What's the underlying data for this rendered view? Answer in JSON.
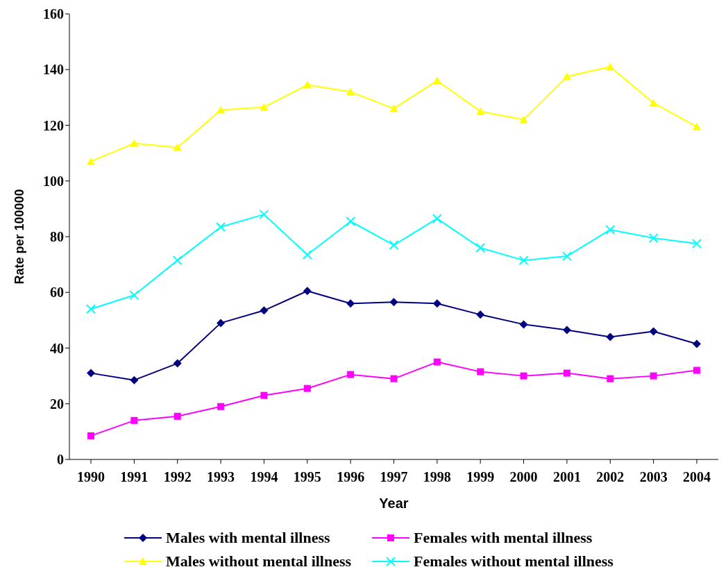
{
  "chart_data": {
    "type": "line",
    "xlabel": "Year",
    "ylabel": "Rate per 100000",
    "categories": [
      "1990",
      "1991",
      "1992",
      "1993",
      "1994",
      "1995",
      "1996",
      "1997",
      "1998",
      "1999",
      "2000",
      "2001",
      "2002",
      "2003",
      "2004"
    ],
    "series": [
      {
        "name": "Males with mental illness",
        "color": "#000080",
        "marker": "diamond",
        "values": [
          31,
          28.5,
          34.5,
          49,
          53.5,
          60.5,
          56,
          56.5,
          56,
          52,
          48.5,
          46.5,
          44,
          46,
          41.5
        ]
      },
      {
        "name": "Females with mental illness",
        "color": "#ff00ff",
        "marker": "square",
        "values": [
          8.5,
          14,
          15.5,
          19,
          23,
          25.5,
          30.5,
          29,
          35,
          31.5,
          30,
          31,
          29,
          30,
          32
        ]
      },
      {
        "name": "Males without mental illness",
        "color": "#ffff00",
        "marker": "triangle",
        "values": [
          107,
          113.5,
          112,
          125.5,
          126.5,
          134.5,
          132,
          126,
          136,
          125,
          122,
          137.5,
          141,
          128,
          119.5
        ]
      },
      {
        "name": "Females without mental illness",
        "color": "#00ffff",
        "marker": "cross",
        "values": [
          54,
          59,
          71.5,
          83.5,
          88,
          73.5,
          85.5,
          77,
          86.5,
          76,
          71.5,
          73,
          82.5,
          79.5,
          77.5
        ]
      }
    ],
    "ylim": [
      0,
      160
    ],
    "yticks": [
      0,
      20,
      40,
      60,
      80,
      100,
      120,
      140,
      160
    ],
    "grid": false,
    "legend": "bottom",
    "line_style": "solid"
  }
}
